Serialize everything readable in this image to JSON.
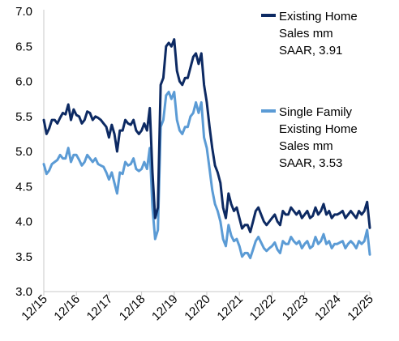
{
  "chart_data": {
    "type": "line",
    "title": "",
    "xlabel": "",
    "ylabel": "",
    "ylim": [
      3.0,
      7.0
    ],
    "y_ticks": [
      "3.0",
      "3.5",
      "4.0",
      "4.5",
      "5.0",
      "5.5",
      "6.0",
      "6.5",
      "7.0"
    ],
    "x_ticks": [
      "12/15",
      "12/16",
      "12/17",
      "12/18",
      "12/19",
      "12/20",
      "12/21",
      "12/22",
      "12/23",
      "12/24",
      "12/25"
    ],
    "x_start": "2015-12",
    "x_end": "2025-12",
    "grid": false,
    "legend_position": "right",
    "series": [
      {
        "name": "Existing Home Sales mm SAAR, 3.91",
        "legend_lines": [
          "Existing Home",
          "Sales mm",
          "SAAR, 3.91"
        ],
        "color": "#0d2a63",
        "points": [
          [
            "2015-12",
            5.45
          ],
          [
            "2016-01",
            5.25
          ],
          [
            "2016-02",
            5.33
          ],
          [
            "2016-03",
            5.45
          ],
          [
            "2016-04",
            5.45
          ],
          [
            "2016-05",
            5.4
          ],
          [
            "2016-06",
            5.48
          ],
          [
            "2016-07",
            5.55
          ],
          [
            "2016-08",
            5.53
          ],
          [
            "2016-09",
            5.67
          ],
          [
            "2016-10",
            5.45
          ],
          [
            "2016-11",
            5.6
          ],
          [
            "2016-12",
            5.52
          ],
          [
            "2017-01",
            5.5
          ],
          [
            "2017-02",
            5.4
          ],
          [
            "2017-03",
            5.45
          ],
          [
            "2017-04",
            5.57
          ],
          [
            "2017-05",
            5.55
          ],
          [
            "2017-06",
            5.45
          ],
          [
            "2017-07",
            5.5
          ],
          [
            "2017-08",
            5.48
          ],
          [
            "2017-09",
            5.45
          ],
          [
            "2017-10",
            5.4
          ],
          [
            "2017-11",
            5.35
          ],
          [
            "2017-12",
            5.2
          ],
          [
            "2018-01",
            5.38
          ],
          [
            "2018-02",
            5.25
          ],
          [
            "2018-03",
            5.0
          ],
          [
            "2018-04",
            5.3
          ],
          [
            "2018-05",
            5.3
          ],
          [
            "2018-06",
            5.45
          ],
          [
            "2018-07",
            5.4
          ],
          [
            "2018-08",
            5.38
          ],
          [
            "2018-09",
            5.45
          ],
          [
            "2018-10",
            5.3
          ],
          [
            "2018-11",
            5.25
          ],
          [
            "2018-12",
            5.3
          ],
          [
            "2019-01",
            5.4
          ],
          [
            "2019-02",
            5.3
          ],
          [
            "2019-03",
            5.62
          ],
          [
            "2019-04",
            4.7
          ],
          [
            "2019-05",
            4.05
          ],
          [
            "2019-06",
            4.2
          ],
          [
            "2019-07",
            5.95
          ],
          [
            "2019-08",
            6.05
          ],
          [
            "2019-09",
            6.5
          ],
          [
            "2019-10",
            6.55
          ],
          [
            "2019-11",
            6.5
          ],
          [
            "2019-12",
            6.6
          ],
          [
            "2020-01",
            6.15
          ],
          [
            "2020-02",
            6.0
          ],
          [
            "2020-03",
            5.95
          ],
          [
            "2020-04",
            6.05
          ],
          [
            "2020-05",
            6.05
          ],
          [
            "2020-06",
            6.2
          ],
          [
            "2020-07",
            6.35
          ],
          [
            "2020-08",
            6.4
          ],
          [
            "2020-09",
            6.25
          ],
          [
            "2020-10",
            6.4
          ],
          [
            "2020-11",
            5.95
          ],
          [
            "2020-12",
            5.7
          ],
          [
            "2021-01",
            5.35
          ],
          [
            "2021-02",
            5.05
          ],
          [
            "2021-03",
            4.8
          ],
          [
            "2021-04",
            4.7
          ],
          [
            "2021-05",
            4.55
          ],
          [
            "2021-06",
            4.2
          ],
          [
            "2021-07",
            4.05
          ],
          [
            "2021-08",
            4.4
          ],
          [
            "2021-09",
            4.25
          ],
          [
            "2021-10",
            4.15
          ],
          [
            "2021-11",
            4.2
          ],
          [
            "2021-12",
            4.05
          ],
          [
            "2022-01",
            3.9
          ],
          [
            "2022-02",
            3.95
          ],
          [
            "2022-03",
            3.95
          ],
          [
            "2022-04",
            3.85
          ],
          [
            "2022-05",
            4.0
          ],
          [
            "2022-06",
            4.15
          ],
          [
            "2022-07",
            4.2
          ],
          [
            "2022-08",
            4.1
          ],
          [
            "2022-09",
            4.0
          ],
          [
            "2022-10",
            3.95
          ],
          [
            "2022-11",
            4.0
          ],
          [
            "2022-12",
            4.05
          ],
          [
            "2023-01",
            4.1
          ],
          [
            "2023-02",
            4.0
          ],
          [
            "2023-03",
            3.95
          ],
          [
            "2023-04",
            4.15
          ],
          [
            "2023-05",
            4.1
          ],
          [
            "2023-06",
            4.1
          ],
          [
            "2023-07",
            4.2
          ],
          [
            "2023-08",
            4.15
          ],
          [
            "2023-09",
            4.1
          ],
          [
            "2023-10",
            4.15
          ],
          [
            "2023-11",
            4.05
          ],
          [
            "2023-12",
            4.1
          ],
          [
            "2024-01",
            4.15
          ],
          [
            "2024-02",
            4.05
          ],
          [
            "2024-03",
            4.08
          ],
          [
            "2024-04",
            4.2
          ],
          [
            "2024-05",
            4.1
          ],
          [
            "2024-06",
            4.15
          ],
          [
            "2024-07",
            4.25
          ],
          [
            "2024-08",
            4.1
          ],
          [
            "2024-09",
            4.15
          ],
          [
            "2024-10",
            4.05
          ],
          [
            "2024-11",
            4.1
          ],
          [
            "2024-12",
            4.1
          ],
          [
            "2025-01",
            4.12
          ],
          [
            "2025-02",
            4.15
          ],
          [
            "2025-03",
            4.05
          ],
          [
            "2025-04",
            4.1
          ],
          [
            "2025-05",
            4.15
          ],
          [
            "2025-06",
            4.1
          ],
          [
            "2025-07",
            4.05
          ],
          [
            "2025-08",
            4.15
          ],
          [
            "2025-09",
            4.1
          ],
          [
            "2025-10",
            4.15
          ],
          [
            "2025-11",
            4.28
          ],
          [
            "2025-12",
            3.91
          ]
        ]
      },
      {
        "name": "Single Family Existing Home Sales mm SAAR, 3.53",
        "legend_lines": [
          "Single Family",
          "Existing Home",
          "Sales mm",
          "SAAR, 3.53"
        ],
        "color": "#5b9bd5",
        "points": [
          [
            "2015-12",
            4.82
          ],
          [
            "2016-01",
            4.68
          ],
          [
            "2016-02",
            4.73
          ],
          [
            "2016-03",
            4.82
          ],
          [
            "2016-04",
            4.85
          ],
          [
            "2016-05",
            4.88
          ],
          [
            "2016-06",
            4.95
          ],
          [
            "2016-07",
            4.9
          ],
          [
            "2016-08",
            4.9
          ],
          [
            "2016-09",
            5.05
          ],
          [
            "2016-10",
            4.85
          ],
          [
            "2016-11",
            4.95
          ],
          [
            "2016-12",
            4.95
          ],
          [
            "2017-01",
            4.88
          ],
          [
            "2017-02",
            4.8
          ],
          [
            "2017-03",
            4.85
          ],
          [
            "2017-04",
            4.95
          ],
          [
            "2017-05",
            4.9
          ],
          [
            "2017-06",
            4.85
          ],
          [
            "2017-07",
            4.9
          ],
          [
            "2017-08",
            4.82
          ],
          [
            "2017-09",
            4.8
          ],
          [
            "2017-10",
            4.78
          ],
          [
            "2017-11",
            4.7
          ],
          [
            "2017-12",
            4.6
          ],
          [
            "2018-01",
            4.7
          ],
          [
            "2018-02",
            4.55
          ],
          [
            "2018-03",
            4.4
          ],
          [
            "2018-04",
            4.7
          ],
          [
            "2018-05",
            4.68
          ],
          [
            "2018-06",
            4.85
          ],
          [
            "2018-07",
            4.8
          ],
          [
            "2018-08",
            4.82
          ],
          [
            "2018-09",
            4.9
          ],
          [
            "2018-10",
            4.75
          ],
          [
            "2018-11",
            4.72
          ],
          [
            "2018-12",
            4.75
          ],
          [
            "2019-01",
            4.85
          ],
          [
            "2019-02",
            4.75
          ],
          [
            "2019-03",
            5.05
          ],
          [
            "2019-04",
            4.2
          ],
          [
            "2019-05",
            3.75
          ],
          [
            "2019-06",
            3.88
          ],
          [
            "2019-07",
            5.35
          ],
          [
            "2019-08",
            5.45
          ],
          [
            "2019-09",
            5.8
          ],
          [
            "2019-10",
            5.85
          ],
          [
            "2019-11",
            5.75
          ],
          [
            "2019-12",
            5.85
          ],
          [
            "2020-01",
            5.45
          ],
          [
            "2020-02",
            5.3
          ],
          [
            "2020-03",
            5.25
          ],
          [
            "2020-04",
            5.35
          ],
          [
            "2020-05",
            5.35
          ],
          [
            "2020-06",
            5.5
          ],
          [
            "2020-07",
            5.55
          ],
          [
            "2020-08",
            5.7
          ],
          [
            "2020-09",
            5.55
          ],
          [
            "2020-10",
            5.7
          ],
          [
            "2020-11",
            5.2
          ],
          [
            "2020-12",
            5.05
          ],
          [
            "2021-01",
            4.75
          ],
          [
            "2021-02",
            4.45
          ],
          [
            "2021-03",
            4.25
          ],
          [
            "2021-04",
            4.15
          ],
          [
            "2021-05",
            4.0
          ],
          [
            "2021-06",
            3.75
          ],
          [
            "2021-07",
            3.65
          ],
          [
            "2021-08",
            3.95
          ],
          [
            "2021-09",
            3.8
          ],
          [
            "2021-10",
            3.72
          ],
          [
            "2021-11",
            3.75
          ],
          [
            "2021-12",
            3.65
          ],
          [
            "2022-01",
            3.5
          ],
          [
            "2022-02",
            3.55
          ],
          [
            "2022-03",
            3.55
          ],
          [
            "2022-04",
            3.48
          ],
          [
            "2022-05",
            3.6
          ],
          [
            "2022-06",
            3.72
          ],
          [
            "2022-07",
            3.78
          ],
          [
            "2022-08",
            3.7
          ],
          [
            "2022-09",
            3.62
          ],
          [
            "2022-10",
            3.58
          ],
          [
            "2022-11",
            3.62
          ],
          [
            "2022-12",
            3.65
          ],
          [
            "2023-01",
            3.7
          ],
          [
            "2023-02",
            3.6
          ],
          [
            "2023-03",
            3.55
          ],
          [
            "2023-04",
            3.72
          ],
          [
            "2023-05",
            3.68
          ],
          [
            "2023-06",
            3.68
          ],
          [
            "2023-07",
            3.78
          ],
          [
            "2023-08",
            3.72
          ],
          [
            "2023-09",
            3.68
          ],
          [
            "2023-10",
            3.72
          ],
          [
            "2023-11",
            3.62
          ],
          [
            "2023-12",
            3.68
          ],
          [
            "2024-01",
            3.72
          ],
          [
            "2024-02",
            3.62
          ],
          [
            "2024-03",
            3.65
          ],
          [
            "2024-04",
            3.78
          ],
          [
            "2024-05",
            3.68
          ],
          [
            "2024-06",
            3.72
          ],
          [
            "2024-07",
            3.82
          ],
          [
            "2024-08",
            3.68
          ],
          [
            "2024-09",
            3.72
          ],
          [
            "2024-10",
            3.62
          ],
          [
            "2024-11",
            3.68
          ],
          [
            "2024-12",
            3.68
          ],
          [
            "2025-01",
            3.7
          ],
          [
            "2025-02",
            3.72
          ],
          [
            "2025-03",
            3.62
          ],
          [
            "2025-04",
            3.68
          ],
          [
            "2025-05",
            3.72
          ],
          [
            "2025-06",
            3.68
          ],
          [
            "2025-07",
            3.62
          ],
          [
            "2025-08",
            3.72
          ],
          [
            "2025-09",
            3.68
          ],
          [
            "2025-10",
            3.72
          ],
          [
            "2025-11",
            3.88
          ],
          [
            "2025-12",
            3.53
          ]
        ]
      }
    ]
  }
}
